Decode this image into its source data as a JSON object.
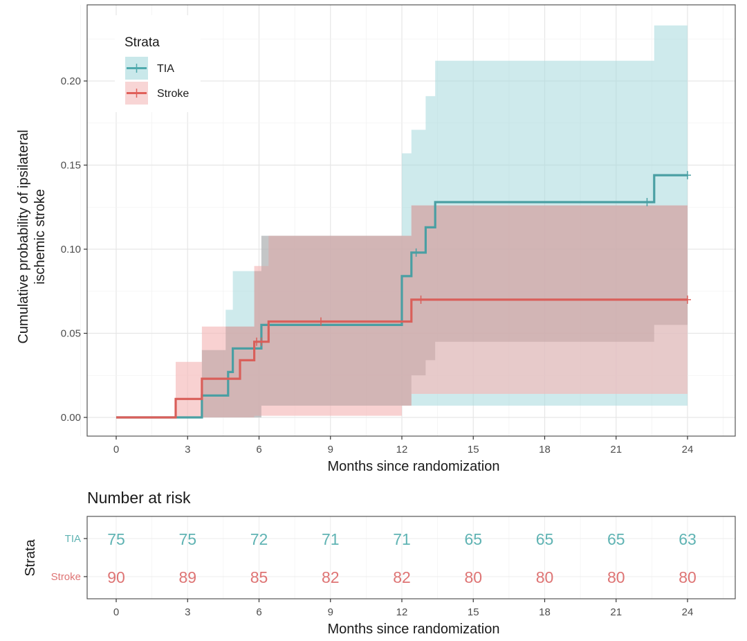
{
  "chart_data": [
    {
      "type": "line",
      "subtype": "kaplan-meier-step-with-ci",
      "title": "",
      "xlabel": "Months since randomization",
      "ylabel_lines": [
        "Cumulative probability of ipsilateral",
        "ischemic stroke"
      ],
      "xlim": [
        -1,
        26
      ],
      "ylim": [
        -0.011,
        0.245
      ],
      "xticks": [
        0,
        3,
        6,
        9,
        12,
        15,
        18,
        21,
        24
      ],
      "yticks": [
        0.0,
        0.05,
        0.1,
        0.15,
        0.2
      ],
      "ytick_labels": [
        "0.00",
        "0.05",
        "0.10",
        "0.15",
        "0.20"
      ],
      "grid": true,
      "legend": {
        "title": "Strata",
        "position": "top-left",
        "entries": [
          "TIA",
          "Stroke"
        ]
      },
      "series": [
        {
          "name": "TIA",
          "color": "#4eaaad",
          "fill": "#a5d8dc",
          "steps": [
            [
              0,
              0
            ],
            [
              3.6,
              0
            ],
            [
              3.6,
              0.013
            ],
            [
              4.7,
              0.013
            ],
            [
              4.7,
              0.027
            ],
            [
              4.9,
              0.027
            ],
            [
              4.9,
              0.041
            ],
            [
              6.1,
              0.041
            ],
            [
              6.1,
              0.055
            ],
            [
              12,
              0.055
            ],
            [
              12,
              0.084
            ],
            [
              12.4,
              0.084
            ],
            [
              12.4,
              0.098
            ],
            [
              13,
              0.098
            ],
            [
              13,
              0.113
            ],
            [
              13.4,
              0.113
            ],
            [
              13.4,
              0.128
            ],
            [
              22.6,
              0.128
            ],
            [
              22.6,
              0.144
            ],
            [
              24,
              0.144
            ]
          ],
          "ci_upper": [
            [
              3.6,
              0.04
            ],
            [
              4.6,
              0.04
            ],
            [
              4.6,
              0.064
            ],
            [
              4.9,
              0.064
            ],
            [
              4.9,
              0.087
            ],
            [
              6.1,
              0.087
            ],
            [
              6.1,
              0.108
            ],
            [
              12,
              0.108
            ],
            [
              12,
              0.157
            ],
            [
              12.4,
              0.157
            ],
            [
              12.4,
              0.171
            ],
            [
              13,
              0.171
            ],
            [
              13,
              0.191
            ],
            [
              13.4,
              0.191
            ],
            [
              13.4,
              0.212
            ],
            [
              22.6,
              0.212
            ],
            [
              22.6,
              0.233
            ],
            [
              24,
              0.233
            ]
          ],
          "ci_lower": [
            [
              3.6,
              0
            ],
            [
              6.1,
              0
            ],
            [
              6.1,
              0.007
            ],
            [
              12,
              0.007
            ],
            [
              12,
              0.007
            ],
            [
              24,
              0.007
            ]
          ],
          "censor_marks": [
            [
              12.6,
              0.098
            ],
            [
              22.3,
              0.128
            ],
            [
              24,
              0.144
            ]
          ]
        },
        {
          "name": "Stroke",
          "color": "#e0605a",
          "fill": "#f4b9b9",
          "steps": [
            [
              0,
              0
            ],
            [
              2.5,
              0
            ],
            [
              2.5,
              0.011
            ],
            [
              3.6,
              0.011
            ],
            [
              3.6,
              0.023
            ],
            [
              5.2,
              0.023
            ],
            [
              5.2,
              0.034
            ],
            [
              5.8,
              0.034
            ],
            [
              5.8,
              0.045
            ],
            [
              6.4,
              0.045
            ],
            [
              6.4,
              0.057
            ],
            [
              12.4,
              0.057
            ],
            [
              12.4,
              0.07
            ],
            [
              24,
              0.07
            ]
          ],
          "ci_upper": [
            [
              2.5,
              0.033
            ],
            [
              3.6,
              0.033
            ],
            [
              3.6,
              0.054
            ],
            [
              5.8,
              0.054
            ],
            [
              5.8,
              0.09
            ],
            [
              6.4,
              0.09
            ],
            [
              6.4,
              0.108
            ],
            [
              12.4,
              0.108
            ],
            [
              12.4,
              0.126
            ],
            [
              24,
              0.126
            ]
          ],
          "ci_lower": [
            [
              2.5,
              0
            ],
            [
              5.8,
              0
            ],
            [
              5.8,
              0.001
            ],
            [
              12,
              0.001
            ],
            [
              12,
              0.007
            ],
            [
              12.4,
              0.007
            ],
            [
              12.4,
              0.014
            ],
            [
              24,
              0.014
            ]
          ],
          "ci_lower_steps_visible": [
            [
              12,
              0.007
            ],
            [
              12.4,
              0.014
            ],
            [
              12.5,
              0.025
            ],
            [
              13,
              0.034
            ],
            [
              13.4,
              0.045
            ],
            [
              22.6,
              0.045
            ],
            [
              22.6,
              0.055
            ],
            [
              24,
              0.055
            ]
          ],
          "censor_marks": [
            [
              5.9,
              0.045
            ],
            [
              6.1,
              0.045
            ],
            [
              8.6,
              0.057
            ],
            [
              12.8,
              0.07
            ],
            [
              24,
              0.07
            ]
          ]
        }
      ]
    },
    {
      "type": "table",
      "title": "Number at risk",
      "xlabel": "Months since randomization",
      "ylabel": "Strata",
      "xticks": [
        0,
        3,
        6,
        9,
        12,
        15,
        18,
        21,
        24
      ],
      "rows": [
        {
          "name": "TIA",
          "color": "#5fb3b3",
          "values": [
            75,
            75,
            72,
            71,
            71,
            65,
            65,
            65,
            63
          ]
        },
        {
          "name": "Stroke",
          "color": "#de7474",
          "values": [
            90,
            89,
            85,
            82,
            82,
            80,
            80,
            80,
            80
          ]
        }
      ]
    }
  ]
}
